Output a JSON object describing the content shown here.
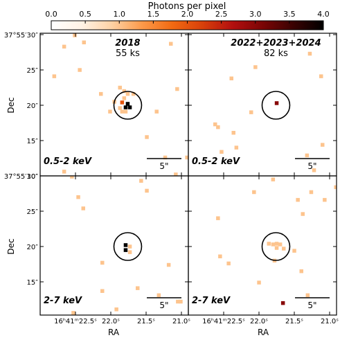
{
  "chart_data": {
    "type": "heatmap",
    "colorbar": {
      "title": "Photons per pixel",
      "range": [
        0,
        4
      ],
      "ticks": [
        "0.0",
        "0.5",
        "1.0",
        "1.5",
        "2.0",
        "2.5",
        "3.0",
        "3.5",
        "4.0"
      ],
      "colormap": [
        "#ffffff",
        "#fff3e6",
        "#fdd2a5",
        "#fd9a4a",
        "#f26a12",
        "#d8400a",
        "#b30f0f",
        "#7a0505",
        "#3a0202",
        "#000000"
      ]
    },
    "xlabel": "RA",
    "ylabel": "Dec",
    "ra_ticks": [
      "16ʰ41ᵐ22.5ˢ",
      "22.0ˢ",
      "21.5ˢ",
      "21.0ˢ"
    ],
    "dec_ticks": [
      "37°55′30″",
      "25″",
      "20″",
      "15″",
      "10″"
    ],
    "scalebar_label": "5\"",
    "panels": [
      {
        "id": "soft-2018",
        "epoch": "2018",
        "exposure": "55 ks",
        "band": "0.5-2 keV",
        "photons": [
          {
            "ra": 22.66,
            "dec": 28.3,
            "counts": 1
          },
          {
            "ra": 22.51,
            "dec": 29.9,
            "counts": 1
          },
          {
            "ra": 22.38,
            "dec": 28.9,
            "counts": 1
          },
          {
            "ra": 21.15,
            "dec": 28.7,
            "counts": 1
          },
          {
            "ra": 20.87,
            "dec": 26.4,
            "counts": 1
          },
          {
            "ra": 22.44,
            "dec": 25.0,
            "counts": 1
          },
          {
            "ra": 22.8,
            "dec": 24.1,
            "counts": 1
          },
          {
            "ra": 21.06,
            "dec": 22.3,
            "counts": 1
          },
          {
            "ra": 22.14,
            "dec": 21.6,
            "counts": 1
          },
          {
            "ra": 21.87,
            "dec": 22.5,
            "counts": 1
          },
          {
            "ra": 21.81,
            "dec": 22.0,
            "counts": 1
          },
          {
            "ra": 21.68,
            "dec": 21.6,
            "counts": 1
          },
          {
            "ra": 21.76,
            "dec": 21.6,
            "counts": 1
          },
          {
            "ra": 21.95,
            "dec": 20.5,
            "counts": 1
          },
          {
            "ra": 21.84,
            "dec": 20.4,
            "counts": 2
          },
          {
            "ra": 21.81,
            "dec": 21.0,
            "counts": 1
          },
          {
            "ra": 21.76,
            "dec": 20.2,
            "counts": 4
          },
          {
            "ra": 21.73,
            "dec": 19.7,
            "counts": 4
          },
          {
            "ra": 21.79,
            "dec": 19.7,
            "counts": 4
          },
          {
            "ra": 21.87,
            "dec": 19.6,
            "counts": 1
          },
          {
            "ra": 22.01,
            "dec": 19.1,
            "counts": 1
          },
          {
            "ra": 21.84,
            "dec": 19.1,
            "counts": 1
          },
          {
            "ra": 21.79,
            "dec": 19.1,
            "counts": 1
          },
          {
            "ra": 21.35,
            "dec": 19.1,
            "counts": 1
          },
          {
            "ra": 21.49,
            "dec": 15.5,
            "counts": 1
          },
          {
            "ra": 21.23,
            "dec": 12.6,
            "counts": 1
          },
          {
            "ra": 20.92,
            "dec": 12.6,
            "counts": 1
          },
          {
            "ra": 21.08,
            "dec": 10.2,
            "counts": 1
          },
          {
            "ra": 22.66,
            "dec": 10.6,
            "counts": 1
          }
        ]
      },
      {
        "id": "soft-2022-2024",
        "epoch": "2022+2023+2024",
        "exposure": "82 ks",
        "band": "0.5-2 keV",
        "photons": [
          {
            "ra": 21.28,
            "dec": 27.3,
            "counts": 1
          },
          {
            "ra": 20.86,
            "dec": 25.9,
            "counts": 1
          },
          {
            "ra": 22.05,
            "dec": 25.4,
            "counts": 1
          },
          {
            "ra": 21.12,
            "dec": 24.1,
            "counts": 1
          },
          {
            "ra": 22.39,
            "dec": 23.8,
            "counts": 1
          },
          {
            "ra": 21.75,
            "dec": 20.3,
            "counts": 3
          },
          {
            "ra": 22.11,
            "dec": 19.0,
            "counts": 1
          },
          {
            "ra": 22.62,
            "dec": 17.3,
            "counts": 1
          },
          {
            "ra": 22.58,
            "dec": 16.9,
            "counts": 1
          },
          {
            "ra": 22.36,
            "dec": 16.1,
            "counts": 1
          },
          {
            "ra": 21.1,
            "dec": 14.4,
            "counts": 1
          },
          {
            "ra": 22.32,
            "dec": 14.0,
            "counts": 1
          },
          {
            "ra": 22.53,
            "dec": 13.4,
            "counts": 1
          },
          {
            "ra": 21.32,
            "dec": 12.9,
            "counts": 1
          },
          {
            "ra": 21.22,
            "dec": 10.8,
            "counts": 1
          }
        ]
      },
      {
        "id": "hard-2018",
        "epoch": "",
        "exposure": "",
        "band": "2-7 keV",
        "photons": [
          {
            "ra": 22.55,
            "dec": 29.9,
            "counts": 1
          },
          {
            "ra": 21.57,
            "dec": 29.3,
            "counts": 1
          },
          {
            "ra": 22.46,
            "dec": 27.0,
            "counts": 1
          },
          {
            "ra": 21.49,
            "dec": 27.9,
            "counts": 1
          },
          {
            "ra": 22.39,
            "dec": 25.4,
            "counts": 1
          },
          {
            "ra": 21.79,
            "dec": 20.2,
            "counts": 4
          },
          {
            "ra": 21.73,
            "dec": 20.0,
            "counts": 1
          },
          {
            "ra": 21.79,
            "dec": 19.5,
            "counts": 4
          },
          {
            "ra": 21.73,
            "dec": 19.2,
            "counts": 1
          },
          {
            "ra": 22.12,
            "dec": 17.7,
            "counts": 1
          },
          {
            "ra": 21.18,
            "dec": 17.4,
            "counts": 1
          },
          {
            "ra": 21.62,
            "dec": 14.1,
            "counts": 1
          },
          {
            "ra": 22.12,
            "dec": 13.7,
            "counts": 1
          },
          {
            "ra": 21.32,
            "dec": 13.1,
            "counts": 1
          },
          {
            "ra": 21.92,
            "dec": 11.1,
            "counts": 1
          },
          {
            "ra": 21.05,
            "dec": 12.2,
            "counts": 1
          },
          {
            "ra": 21.01,
            "dec": 12.2,
            "counts": 1
          },
          {
            "ra": 22.53,
            "dec": 10.6,
            "counts": 1
          }
        ]
      },
      {
        "id": "hard-2022-2024",
        "epoch": "",
        "exposure": "",
        "band": "2-7 keV",
        "photons": [
          {
            "ra": 22.35,
            "dec": 30.3,
            "counts": 1
          },
          {
            "ra": 21.8,
            "dec": 29.5,
            "counts": 1
          },
          {
            "ra": 21.26,
            "dec": 27.7,
            "counts": 1
          },
          {
            "ra": 20.91,
            "dec": 28.4,
            "counts": 1
          },
          {
            "ra": 22.07,
            "dec": 27.7,
            "counts": 1
          },
          {
            "ra": 21.45,
            "dec": 26.6,
            "counts": 1
          },
          {
            "ra": 21.07,
            "dec": 26.6,
            "counts": 1
          },
          {
            "ra": 20.86,
            "dec": 24.6,
            "counts": 1
          },
          {
            "ra": 21.38,
            "dec": 24.6,
            "counts": 1
          },
          {
            "ra": 22.58,
            "dec": 24.0,
            "counts": 1
          },
          {
            "ra": 21.86,
            "dec": 20.4,
            "counts": 1
          },
          {
            "ra": 21.8,
            "dec": 20.3,
            "counts": 1
          },
          {
            "ra": 21.75,
            "dec": 20.4,
            "counts": 1
          },
          {
            "ra": 21.7,
            "dec": 20.3,
            "counts": 1
          },
          {
            "ra": 21.75,
            "dec": 19.8,
            "counts": 1
          },
          {
            "ra": 21.65,
            "dec": 19.7,
            "counts": 1
          },
          {
            "ra": 21.5,
            "dec": 19.4,
            "counts": 1
          },
          {
            "ra": 22.55,
            "dec": 18.6,
            "counts": 1
          },
          {
            "ra": 21.78,
            "dec": 18.0,
            "counts": 1
          },
          {
            "ra": 22.43,
            "dec": 17.6,
            "counts": 1
          },
          {
            "ra": 21.4,
            "dec": 16.5,
            "counts": 1
          },
          {
            "ra": 22.0,
            "dec": 14.9,
            "counts": 1
          },
          {
            "ra": 21.66,
            "dec": 12.0,
            "counts": 3
          },
          {
            "ra": 21.31,
            "dec": 13.1,
            "counts": 1
          }
        ]
      }
    ]
  }
}
